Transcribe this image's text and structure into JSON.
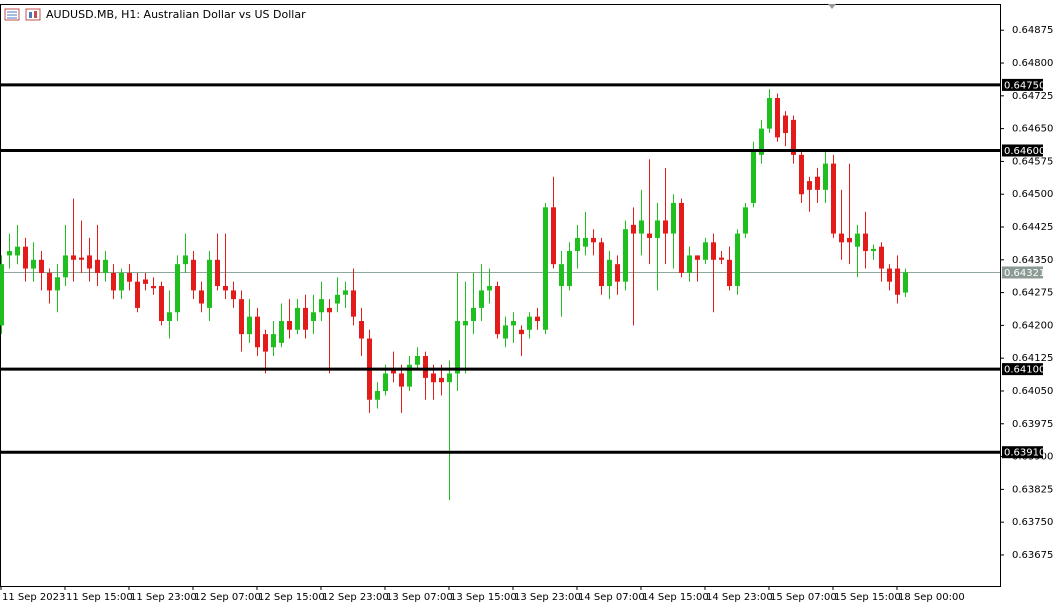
{
  "chart_data": {
    "type": "candlestick",
    "title": "AUDUSD.MB, H1:  Australian Dollar vs US Dollar",
    "categories": [
      "11 Sep 2023",
      null,
      null,
      null,
      null,
      null,
      null,
      null,
      "11 Sep 15:00",
      null,
      null,
      null,
      null,
      null,
      null,
      null,
      "11 Sep 23:00",
      null,
      null,
      null,
      null,
      null,
      null,
      null,
      "12 Sep 07:00",
      null,
      null,
      null,
      null,
      null,
      null,
      null,
      "12 Sep 15:00",
      null,
      null,
      null,
      null,
      null,
      null,
      null,
      "12 Sep 23:00",
      null,
      null,
      null,
      null,
      null,
      null,
      null,
      "13 Sep 07:00",
      null,
      null,
      null,
      null,
      null,
      null,
      null,
      "13 Sep 15:00",
      null,
      null,
      null,
      null,
      null,
      null,
      null,
      "13 Sep 23:00",
      null,
      null,
      null,
      null,
      null,
      null,
      null,
      "14 Sep 07:00",
      null,
      null,
      null,
      null,
      null,
      null,
      null,
      "14 Sep 15:00",
      null,
      null,
      null,
      null,
      null,
      null,
      null,
      "14 Sep 23:00",
      null,
      null,
      null,
      null,
      null,
      null,
      null,
      "15 Sep 07:00",
      null,
      null,
      null,
      null,
      null,
      null,
      null,
      "15 Sep 15:00",
      null,
      null,
      null,
      null,
      null,
      null,
      null,
      "18 Sep 00:00",
      null
    ],
    "open": [
      0.642,
      0.6436,
      0.6436,
      0.6438,
      0.6433,
      0.6435,
      0.6432,
      0.6428,
      0.6431,
      0.6436,
      0.64355,
      0.6436,
      0.6435,
      0.6432,
      0.6432,
      0.6428,
      0.6432,
      0.643,
      0.64305,
      0.6429,
      0.6429,
      0.6421,
      0.6423,
      0.6434,
      0.6435,
      0.6428,
      0.6424,
      0.6435,
      0.6429,
      0.6428,
      0.6426,
      0.6418,
      0.6422,
      0.6418,
      0.6415,
      0.6416,
      0.6421,
      0.6419,
      0.6424,
      0.6421,
      0.6423,
      0.6424,
      0.6425,
      0.6427,
      0.6428,
      0.6421,
      0.6417,
      0.6403,
      0.6405,
      0.641,
      0.6409,
      0.6406,
      0.6411,
      0.6413,
      0.6409,
      0.6408,
      0.6407,
      0.6409,
      0.642,
      0.6421,
      0.6424,
      0.6428,
      0.6429,
      0.6417,
      0.642,
      0.6419,
      0.6419,
      0.6422,
      0.6419,
      0.6447,
      0.6429,
      0.6429,
      0.6437,
      0.6438,
      0.644,
      0.6439,
      0.6429,
      0.6434,
      0.643,
      0.6443,
      0.6441,
      0.6441,
      0.644,
      0.6444,
      0.6441,
      0.6448,
      0.6432,
      0.6436,
      0.6435,
      0.6439,
      0.64355,
      0.6435,
      0.6429,
      0.6441,
      0.6448,
      0.6459,
      0.6465,
      0.6472,
      0.6468,
      0.6467,
      0.6459,
      0.6453,
      0.6454,
      0.6451,
      0.6457,
      0.6441,
      0.644,
      0.6438,
      0.6441,
      0.6437,
      0.6438,
      0.6433,
      0.6433,
      0.64275
    ],
    "high": [
      0.6436,
      0.6441,
      0.6443,
      0.644,
      0.6439,
      0.6437,
      0.6433,
      0.6434,
      0.6443,
      0.6449,
      0.6444,
      0.644,
      0.6443,
      0.6437,
      0.6434,
      0.6433,
      0.6434,
      0.6432,
      0.6432,
      0.6431,
      0.643,
      0.6428,
      0.6436,
      0.6441,
      0.6437,
      0.643,
      0.6437,
      0.6441,
      0.6441,
      0.643,
      0.6428,
      0.6426,
      0.6424,
      0.6419,
      0.6421,
      0.6425,
      0.6426,
      0.6426,
      0.6427,
      0.6427,
      0.643,
      0.6426,
      0.6431,
      0.643,
      0.6433,
      0.6424,
      0.6419,
      0.6407,
      0.6411,
      0.6414,
      0.6411,
      0.6413,
      0.6415,
      0.6414,
      0.6411,
      0.6411,
      0.6412,
      0.6432,
      0.643,
      0.6432,
      0.6434,
      0.6433,
      0.643,
      0.6422,
      0.6423,
      0.642,
      0.6423,
      0.6424,
      0.6448,
      0.6454,
      0.6437,
      0.6439,
      0.6443,
      0.6446,
      0.6442,
      0.644,
      0.6437,
      0.6436,
      0.6444,
      0.6447,
      0.6451,
      0.6458,
      0.6448,
      0.6456,
      0.645,
      0.6449,
      0.6438,
      0.6436,
      0.644,
      0.6441,
      0.6437,
      0.6438,
      0.6442,
      0.6448,
      0.6462,
      0.6467,
      0.6474,
      0.6473,
      0.6469,
      0.6468,
      0.646,
      0.6454,
      0.6456,
      0.646,
      0.6459,
      0.6451,
      0.6457,
      0.6443,
      0.6446,
      0.64385,
      0.6439,
      0.6434,
      0.6436,
      0.6433
    ],
    "low": [
      0.6418,
      0.6433,
      0.6434,
      0.643,
      0.643,
      0.6428,
      0.6425,
      0.6423,
      0.6429,
      0.643,
      0.6432,
      0.643,
      0.6429,
      0.643,
      0.6426,
      0.6426,
      0.6428,
      0.6423,
      0.6428,
      0.6427,
      0.642,
      0.6417,
      0.6421,
      0.6432,
      0.6426,
      0.6423,
      0.6421,
      0.6428,
      0.6426,
      0.6424,
      0.6414,
      0.6416,
      0.6413,
      0.6409,
      0.6413,
      0.6415,
      0.6417,
      0.6418,
      0.6417,
      0.6418,
      0.6421,
      0.6409,
      0.6423,
      0.6424,
      0.642,
      0.6413,
      0.64,
      0.6401,
      0.6404,
      0.6407,
      0.64,
      0.6405,
      0.641,
      0.6403,
      0.6403,
      0.6404,
      0.638,
      0.6405,
      0.6409,
      0.6418,
      0.6421,
      0.6425,
      0.6417,
      0.6415,
      0.6416,
      0.6413,
      0.6417,
      0.6419,
      0.6418,
      0.6433,
      0.6422,
      0.6428,
      0.6433,
      0.6436,
      0.6436,
      0.6427,
      0.6426,
      0.6427,
      0.6428,
      0.642,
      0.6436,
      0.6434,
      0.6428,
      0.6434,
      0.6433,
      0.6431,
      0.643,
      0.643,
      0.6434,
      0.6423,
      0.6434,
      0.6428,
      0.6427,
      0.644,
      0.6447,
      0.6457,
      0.6464,
      0.6462,
      0.6461,
      0.6457,
      0.6448,
      0.6446,
      0.6448,
      0.6448,
      0.644,
      0.6435,
      0.6434,
      0.6431,
      0.6433,
      0.6435,
      0.643,
      0.6428,
      0.6425,
      0.64265
    ],
    "close": [
      0.6434,
      0.6437,
      0.6438,
      0.6433,
      0.6435,
      0.6432,
      0.6428,
      0.6431,
      0.6436,
      0.6435,
      0.6435,
      0.6433,
      0.6432,
      0.6435,
      0.6428,
      0.6432,
      0.643,
      0.6424,
      0.64295,
      0.64285,
      0.6421,
      0.6423,
      0.6434,
      0.6436,
      0.6428,
      0.6425,
      0.6435,
      0.6429,
      0.6428,
      0.6426,
      0.6418,
      0.6422,
      0.6415,
      0.6414,
      0.6418,
      0.6421,
      0.6419,
      0.6424,
      0.6419,
      0.6423,
      0.6426,
      0.6423,
      0.6427,
      0.6428,
      0.6422,
      0.6417,
      0.6403,
      0.6405,
      0.6409,
      0.6409,
      0.6406,
      0.6411,
      0.6413,
      0.6408,
      0.6407,
      0.6407,
      0.6409,
      0.6421,
      0.6421,
      0.6424,
      0.6428,
      0.6429,
      0.6418,
      0.642,
      0.6421,
      0.6418,
      0.6422,
      0.6421,
      0.6447,
      0.6434,
      0.6434,
      0.6437,
      0.644,
      0.644,
      0.6439,
      0.6429,
      0.6435,
      0.643,
      0.6442,
      0.6441,
      0.6444,
      0.644,
      0.6444,
      0.6441,
      0.6448,
      0.6432,
      0.6436,
      0.6435,
      0.6439,
      0.6435,
      0.6435,
      0.6429,
      0.6441,
      0.6447,
      0.646,
      0.6465,
      0.6472,
      0.6463,
      0.6464,
      0.6459,
      0.645,
      0.6451,
      0.6451,
      0.6457,
      0.6441,
      0.6439,
      0.6439,
      0.6441,
      0.6437,
      0.64375,
      0.6433,
      0.643,
      0.6427,
      0.64321
    ],
    "up_color": "#1fbf1f",
    "down_color": "#e31b1b",
    "ylim": [
      0.63604,
      0.64935
    ],
    "yticks": [
      0.64875,
      {
        "value": 0.648,
        "label": "0.64800"
      },
      0.64725,
      {
        "value": 0.6465,
        "label": "0.64650"
      },
      0.64575,
      {
        "value": 0.645,
        "label": "0.64500"
      },
      0.64425,
      {
        "value": 0.6435,
        "label": "0.64350"
      },
      0.64275,
      {
        "value": 0.642,
        "label": "0.64200"
      },
      0.64125,
      {
        "value": 0.6405,
        "label": "0.64050"
      },
      0.63975,
      {
        "value": 0.639,
        "label": "0.63900"
      },
      0.63825,
      {
        "value": 0.6375,
        "label": "0.63750"
      },
      0.63675
    ],
    "levels": [
      {
        "value": 0.6475,
        "label": "0.64750"
      },
      {
        "value": 0.646,
        "label": "0.64600"
      },
      {
        "value": 0.641,
        "label": "0.64100"
      },
      {
        "value": 0.6391,
        "label": "0.63910"
      }
    ],
    "price_line": 0.64321,
    "grid": false
  }
}
